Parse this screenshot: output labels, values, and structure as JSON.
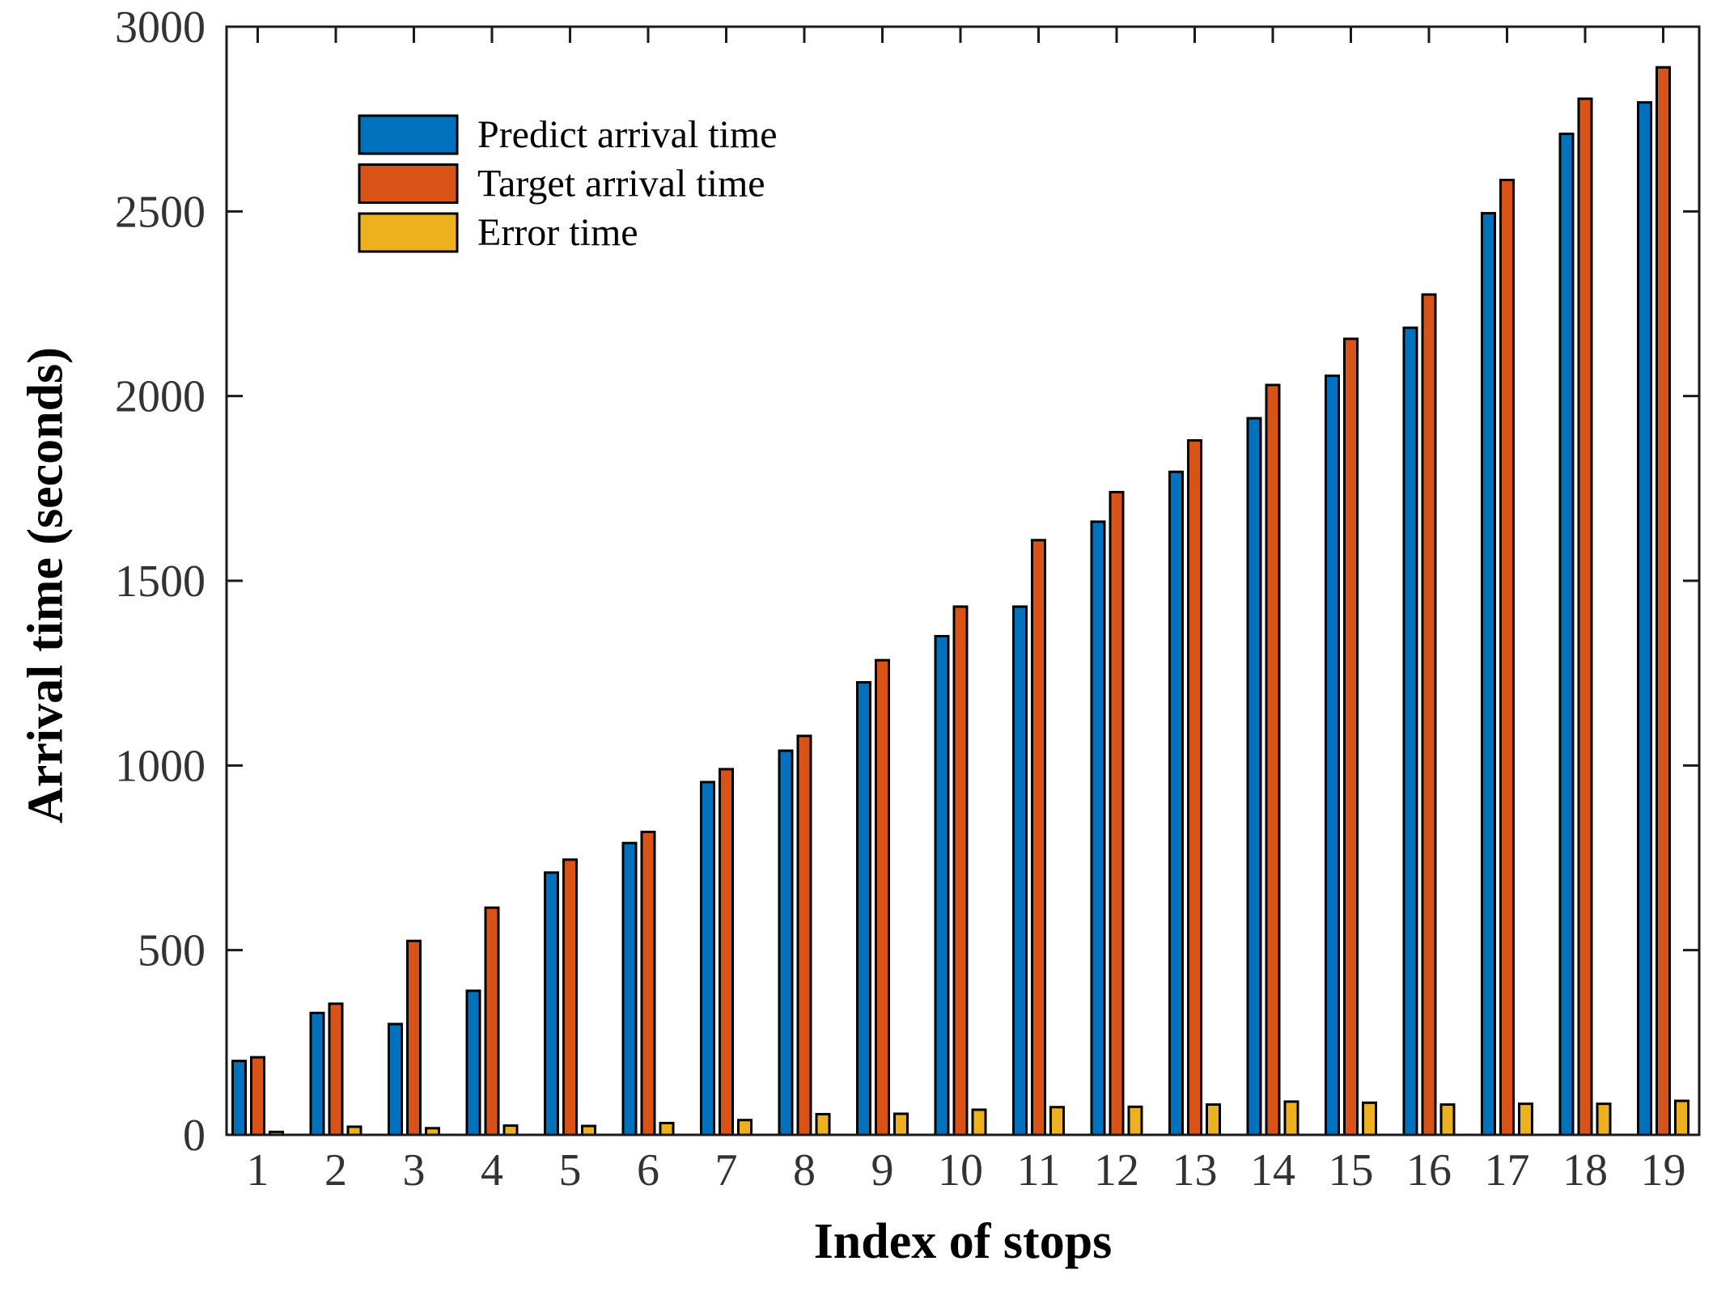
{
  "figure": {
    "background": "#ffffff"
  },
  "chart_data": {
    "type": "bar",
    "title": "",
    "xlabel": "Index of stops",
    "ylabel": "Arrival time (seconds)",
    "categories": [
      "1",
      "2",
      "3",
      "4",
      "5",
      "6",
      "7",
      "8",
      "9",
      "10",
      "11",
      "12",
      "13",
      "14",
      "15",
      "16",
      "17",
      "18",
      "19"
    ],
    "series": [
      {
        "name": "Predict arrival time",
        "color": "#0072BD",
        "values": [
          200,
          330,
          300,
          390,
          710,
          790,
          955,
          1040,
          1225,
          1350,
          1430,
          1660,
          1795,
          1940,
          2055,
          2185,
          2495,
          2710,
          2795
        ]
      },
      {
        "name": "Target arrival time",
        "color": "#D95319",
        "values": [
          210,
          355,
          525,
          615,
          745,
          820,
          990,
          1080,
          1285,
          1430,
          1610,
          1740,
          1880,
          2030,
          2155,
          2275,
          2585,
          2805,
          2890
        ]
      },
      {
        "name": "Error time",
        "color": "#EDB120",
        "values": [
          8,
          22,
          18,
          25,
          24,
          32,
          40,
          56,
          57,
          68,
          75,
          76,
          82,
          90,
          87,
          82,
          84,
          84,
          92
        ]
      }
    ],
    "ylim": [
      0,
      3000
    ],
    "yticks": [
      0,
      500,
      1000,
      1500,
      2000,
      2500,
      3000
    ],
    "grid": false,
    "legend_position": "top-left-inside",
    "bar_outline_color": "#000000",
    "axis_color": "#1a1a1a",
    "tick_label_color": "#333333"
  }
}
